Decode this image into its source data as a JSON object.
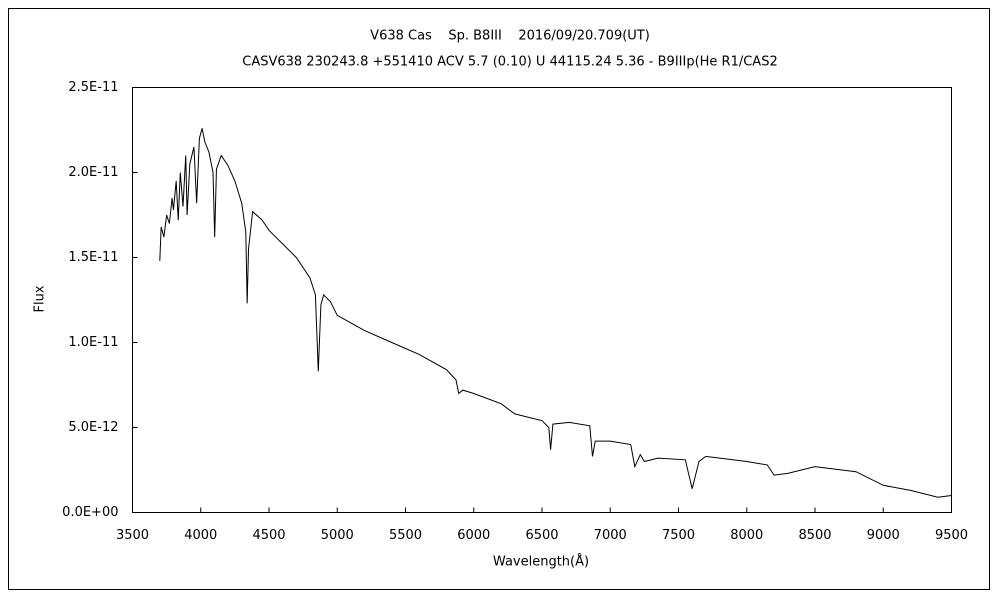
{
  "chart_data": {
    "type": "line",
    "title": "V638 Cas    Sp. B8III    2016/09/20.709(UT)",
    "subtitle": "CASV638 230243.8 +551410 ACV 5.7 (0.10) U 44115.24 5.36 - B9IIIp(He R1/CAS2",
    "xlabel": "Wavelength(Å)",
    "ylabel": "Flux",
    "xlim": [
      3500,
      9500
    ],
    "xticks": [
      3500,
      4000,
      4500,
      5000,
      5500,
      6000,
      6500,
      7000,
      7500,
      8000,
      8500,
      9000,
      9500
    ],
    "ylim": [
      0,
      2.5e-11
    ],
    "yticks": [
      {
        "value": 0,
        "label": "0.0E+00"
      },
      {
        "value": 5e-12,
        "label": "5.0E-12"
      },
      {
        "value": 1e-11,
        "label": "1.0E-11"
      },
      {
        "value": 1.5e-11,
        "label": "1.5E-11"
      },
      {
        "value": 2e-11,
        "label": "2.0E-11"
      },
      {
        "value": 2.5e-11,
        "label": "2.5E-11"
      }
    ],
    "series": [
      {
        "color": "#000000",
        "x": [
          3700,
          3710,
          3730,
          3750,
          3770,
          3790,
          3800,
          3820,
          3835,
          3850,
          3870,
          3890,
          3900,
          3920,
          3950,
          3970,
          3990,
          4010,
          4030,
          4060,
          4090,
          4102,
          4115,
          4150,
          4200,
          4250,
          4300,
          4330,
          4340,
          4350,
          4380,
          4450,
          4500,
          4600,
          4700,
          4800,
          4840,
          4861,
          4880,
          4900,
          4950,
          5000,
          5200,
          5400,
          5600,
          5800,
          5870,
          5890,
          5920,
          6000,
          6200,
          6300,
          6500,
          6550,
          6563,
          6580,
          6700,
          6850,
          6870,
          6890,
          7000,
          7150,
          7180,
          7220,
          7250,
          7350,
          7550,
          7600,
          7650,
          7700,
          8000,
          8150,
          8200,
          8300,
          8500,
          8800,
          9000,
          9200,
          9400,
          9500
        ],
        "values": [
          1.48e-11,
          1.68e-11,
          1.62e-11,
          1.75e-11,
          1.7e-11,
          1.85e-11,
          1.78e-11,
          1.95e-11,
          1.72e-11,
          2e-11,
          1.8e-11,
          2.1e-11,
          1.75e-11,
          2.05e-11,
          2.15e-11,
          1.82e-11,
          2.2e-11,
          2.26e-11,
          2.18e-11,
          2.12e-11,
          2e-11,
          1.62e-11,
          2.02e-11,
          2.1e-11,
          2.04e-11,
          1.95e-11,
          1.82e-11,
          1.65e-11,
          1.23e-11,
          1.55e-11,
          1.77e-11,
          1.72e-11,
          1.66e-11,
          1.58e-11,
          1.5e-11,
          1.38e-11,
          1.28e-11,
          8.3e-12,
          1.22e-11,
          1.28e-11,
          1.24e-11,
          1.16e-11,
          1.07e-11,
          1e-11,
          9.3e-12,
          8.4e-12,
          7.8e-12,
          7e-12,
          7.2e-12,
          7e-12,
          6.4e-12,
          5.8e-12,
          5.4e-12,
          5e-12,
          3.7e-12,
          5.2e-12,
          5.3e-12,
          5.1e-12,
          3.3e-12,
          4.2e-12,
          4.2e-12,
          4e-12,
          2.7e-12,
          3.4e-12,
          3e-12,
          3.2e-12,
          3.1e-12,
          1.4e-12,
          3e-12,
          3.3e-12,
          3e-12,
          2.8e-12,
          2.2e-12,
          2.3e-12,
          2.7e-12,
          2.4e-12,
          1.6e-12,
          1.3e-12,
          9e-13,
          1e-12
        ]
      }
    ]
  }
}
